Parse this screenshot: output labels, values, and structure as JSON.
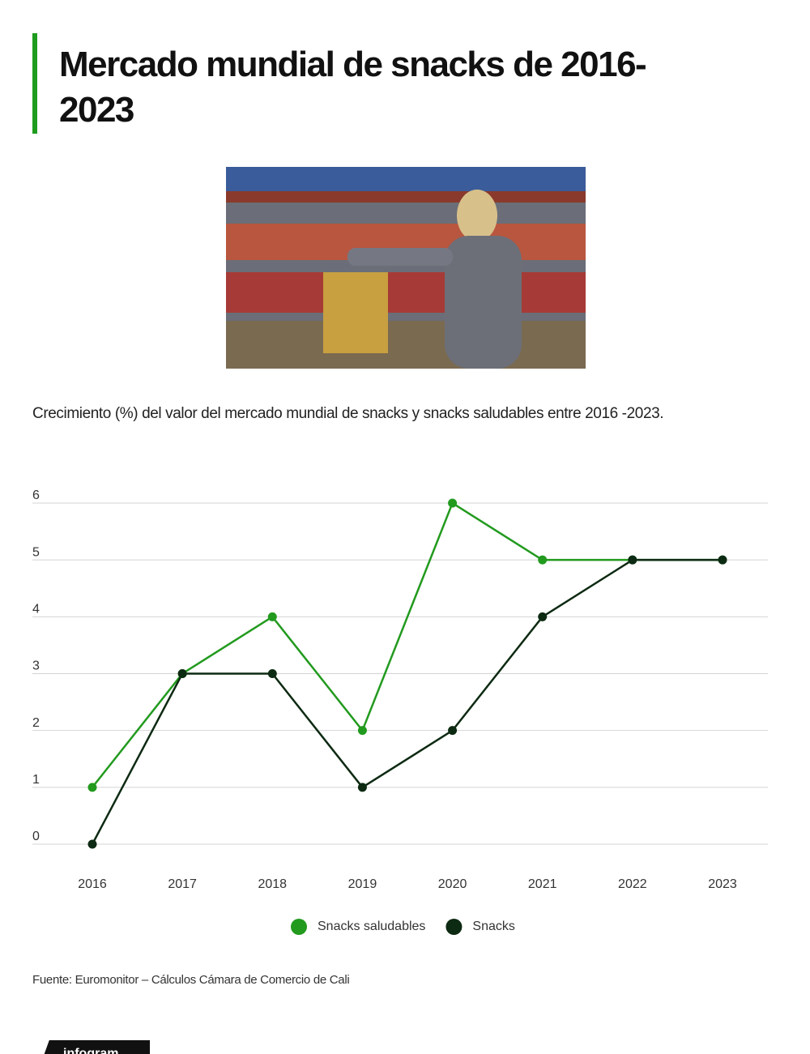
{
  "chart_data": {
    "type": "line",
    "title": "Mercado mundial de snacks de 2016-2023",
    "subtitle": "Crecimiento (%) del valor del mercado mundial de snacks y snacks saludables entre 2016 -2023.",
    "source": "Fuente: Euromonitor – Cálculos Cámara de Comercio de Cali",
    "categories": [
      "2016",
      "2017",
      "2018",
      "2019",
      "2020",
      "2021",
      "2022",
      "2023"
    ],
    "series": [
      {
        "name": "Snacks saludables",
        "color": "#229a1e",
        "values": [
          1,
          3,
          4,
          2,
          6,
          5,
          5,
          5
        ]
      },
      {
        "name": "Snacks",
        "color": "#0d2a12",
        "values": [
          0,
          3,
          3,
          1,
          2,
          4,
          5,
          5
        ]
      }
    ],
    "ylim": [
      0,
      6
    ],
    "yticks": [
      0,
      1,
      2,
      3,
      4,
      5,
      6
    ],
    "grid": true,
    "legend": "bottom"
  },
  "brand": "infogram"
}
